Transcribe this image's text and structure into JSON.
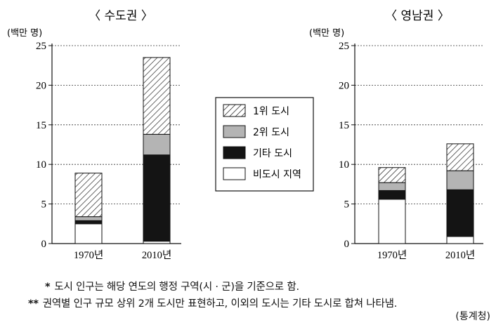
{
  "chart_data": [
    {
      "type": "bar",
      "stacked": true,
      "title": "〈 수도권 〉",
      "ylabel": "(백만 명)",
      "ylim": [
        0,
        25
      ],
      "yticks": [
        0,
        5,
        10,
        15,
        20,
        25
      ],
      "grid": "dashed horizontal",
      "categories": [
        "1970년",
        "2010년"
      ],
      "series": [
        {
          "name": "비도시 지역",
          "values": [
            2.5,
            0.3
          ]
        },
        {
          "name": "기타 도시",
          "values": [
            0.4,
            10.9
          ]
        },
        {
          "name": "2위 도시",
          "values": [
            0.5,
            2.6
          ]
        },
        {
          "name": "1위 도시",
          "values": [
            5.5,
            9.7
          ]
        }
      ]
    },
    {
      "type": "bar",
      "stacked": true,
      "title": "〈 영남권 〉",
      "ylabel": "(백만 명)",
      "ylim": [
        0,
        25
      ],
      "yticks": [
        0,
        5,
        10,
        15,
        20,
        25
      ],
      "grid": "dashed horizontal",
      "categories": [
        "1970년",
        "2010년"
      ],
      "series": [
        {
          "name": "비도시 지역",
          "values": [
            5.6,
            0.9
          ]
        },
        {
          "name": "기타 도시",
          "values": [
            1.1,
            5.9
          ]
        },
        {
          "name": "2위 도시",
          "values": [
            1.0,
            2.4
          ]
        },
        {
          "name": "1위 도시",
          "values": [
            1.9,
            3.4
          ]
        }
      ]
    }
  ],
  "legend": {
    "placement": "center",
    "items": [
      {
        "label": "1위  도시",
        "fill": "hatch"
      },
      {
        "label": "2위  도시",
        "fill": "#b4b4b4"
      },
      {
        "label": "기타  도시",
        "fill": "#141414"
      },
      {
        "label": "비도시 지역",
        "fill": "#ffffff"
      }
    ]
  },
  "series_fills": {
    "1위 도시": "hatch",
    "2위 도시": "#b4b4b4",
    "기타 도시": "#141414",
    "비도시 지역": "#ffffff"
  },
  "notes": {
    "note1_mark": "*",
    "note1_text": "도시 인구는 해당 연도의 행정 구역(시 · 군)을 기준으로 함.",
    "note2_mark": "**",
    "note2_text": "권역별 인구 규모 상위 2개 도시만 표현하고, 이외의 도시는 기타 도시로 합쳐 나타냄.",
    "source": "(통계청)"
  }
}
